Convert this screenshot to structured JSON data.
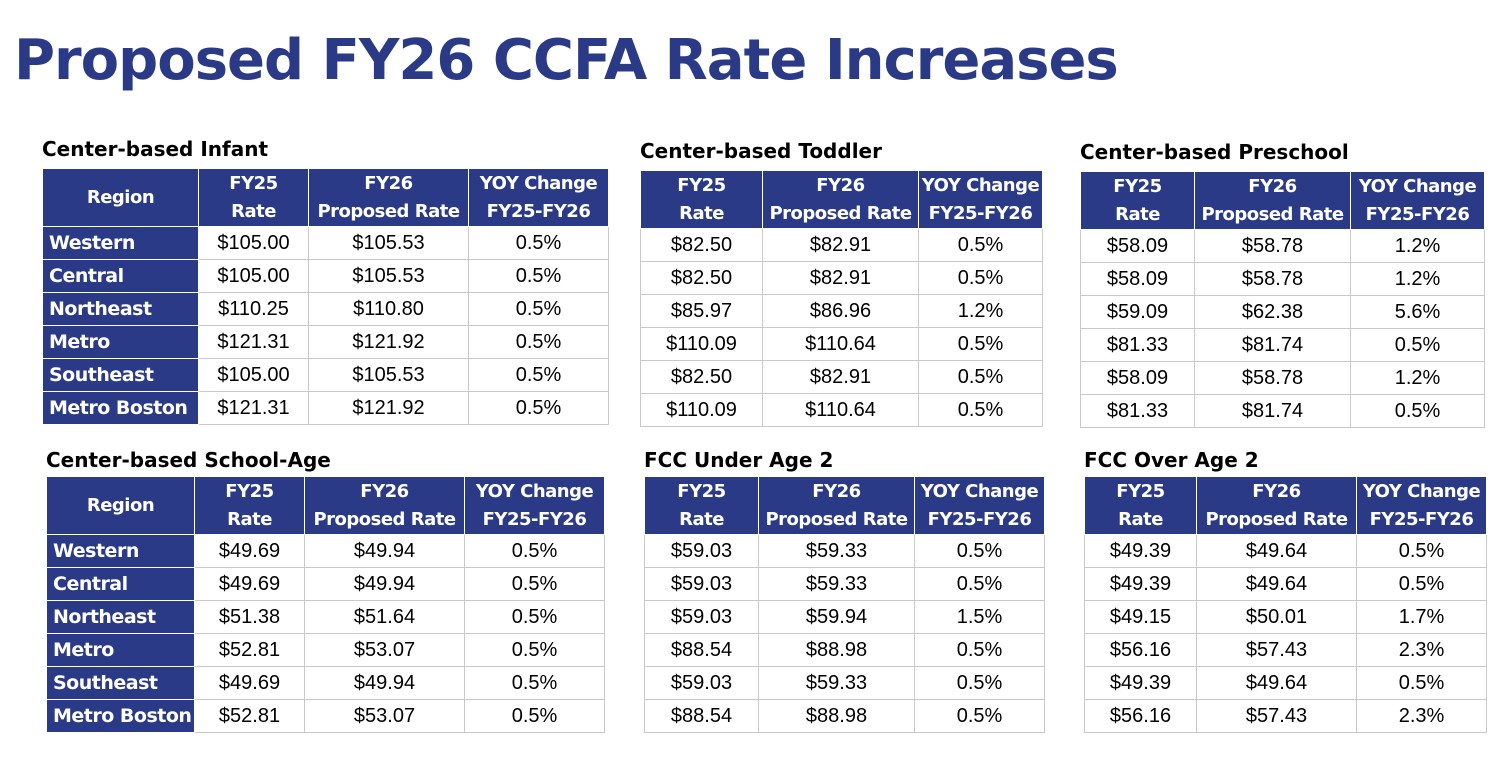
{
  "title": "Proposed FY26 CCFA Rate Increases",
  "header": {
    "region": "Region",
    "fy25": [
      "FY25",
      "Rate"
    ],
    "fy26": [
      "FY26",
      "Proposed Rate"
    ],
    "yoy": [
      "YOY Change",
      "FY25-FY26"
    ]
  },
  "regions": [
    "Western",
    "Central",
    "Northeast",
    "Metro",
    "Southeast",
    "Metro Boston"
  ],
  "tables": {
    "infant": {
      "title": "Center-based Infant",
      "rows": [
        [
          "$105.00",
          "$105.53",
          "0.5%"
        ],
        [
          "$105.00",
          "$105.53",
          "0.5%"
        ],
        [
          "$110.25",
          "$110.80",
          "0.5%"
        ],
        [
          "$121.31",
          "$121.92",
          "0.5%"
        ],
        [
          "$105.00",
          "$105.53",
          "0.5%"
        ],
        [
          "$121.31",
          "$121.92",
          "0.5%"
        ]
      ]
    },
    "toddler": {
      "title": "Center-based Toddler",
      "rows": [
        [
          "$82.50",
          "$82.91",
          "0.5%"
        ],
        [
          "$82.50",
          "$82.91",
          "0.5%"
        ],
        [
          "$85.97",
          "$86.96",
          "1.2%"
        ],
        [
          "$110.09",
          "$110.64",
          "0.5%"
        ],
        [
          "$82.50",
          "$82.91",
          "0.5%"
        ],
        [
          "$110.09",
          "$110.64",
          "0.5%"
        ]
      ]
    },
    "preschool": {
      "title": "Center-based Preschool",
      "rows": [
        [
          "$58.09",
          "$58.78",
          "1.2%"
        ],
        [
          "$58.09",
          "$58.78",
          "1.2%"
        ],
        [
          "$59.09",
          "$62.38",
          "5.6%"
        ],
        [
          "$81.33",
          "$81.74",
          "0.5%"
        ],
        [
          "$58.09",
          "$58.78",
          "1.2%"
        ],
        [
          "$81.33",
          "$81.74",
          "0.5%"
        ]
      ]
    },
    "school_age": {
      "title": "Center-based School-Age",
      "rows": [
        [
          "$49.69",
          "$49.94",
          "0.5%"
        ],
        [
          "$49.69",
          "$49.94",
          "0.5%"
        ],
        [
          "$51.38",
          "$51.64",
          "0.5%"
        ],
        [
          "$52.81",
          "$53.07",
          "0.5%"
        ],
        [
          "$49.69",
          "$49.94",
          "0.5%"
        ],
        [
          "$52.81",
          "$53.07",
          "0.5%"
        ]
      ]
    },
    "fcc_under2": {
      "title": "FCC Under Age 2",
      "rows": [
        [
          "$59.03",
          "$59.33",
          "0.5%"
        ],
        [
          "$59.03",
          "$59.33",
          "0.5%"
        ],
        [
          "$59.03",
          "$59.94",
          "1.5%"
        ],
        [
          "$88.54",
          "$88.98",
          "0.5%"
        ],
        [
          "$59.03",
          "$59.33",
          "0.5%"
        ],
        [
          "$88.54",
          "$88.98",
          "0.5%"
        ]
      ]
    },
    "fcc_over2": {
      "title": "FCC Over Age 2",
      "rows": [
        [
          "$49.39",
          "$49.64",
          "0.5%"
        ],
        [
          "$49.39",
          "$49.64",
          "0.5%"
        ],
        [
          "$49.15",
          "$50.01",
          "1.7%"
        ],
        [
          "$56.16",
          "$57.43",
          "2.3%"
        ],
        [
          "$49.39",
          "$49.64",
          "0.5%"
        ],
        [
          "$56.16",
          "$57.43",
          "2.3%"
        ]
      ]
    }
  }
}
